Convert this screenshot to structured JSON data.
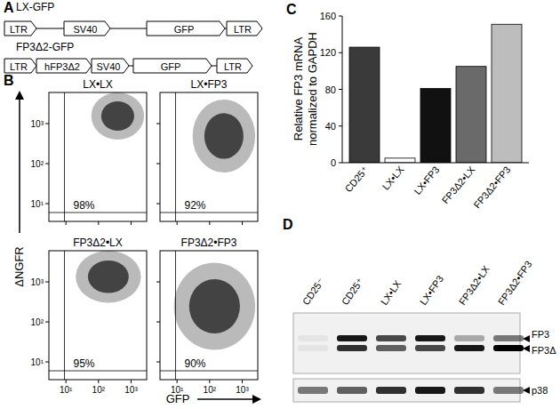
{
  "panel_labels": [
    "A",
    "B",
    "C",
    "D"
  ],
  "diagram": {
    "constructs": [
      {
        "name": "LX-GFP",
        "elements": [
          "LTR",
          "SV40",
          "GFP",
          "LTR"
        ]
      },
      {
        "name": "FP3Δ2-GFP",
        "elements": [
          "LTR",
          "hFP3Δ2",
          "SV40",
          "GFP",
          "LTR"
        ]
      }
    ]
  },
  "flow": {
    "x_label": "GFP",
    "y_label": "ΔNGFR",
    "log": true,
    "xlim": [
      3,
      3000
    ],
    "ylim": [
      3.6,
      6000
    ],
    "xticks": [
      {
        "value": 10,
        "label": "10¹"
      },
      {
        "value": 100,
        "label": "10²"
      },
      {
        "value": 1000,
        "label": "10³"
      }
    ],
    "yticks": [
      {
        "value": 10,
        "label": "10¹"
      },
      {
        "value": 100,
        "label": "10²"
      },
      {
        "value": 1000,
        "label": "10³"
      }
    ],
    "plots": [
      {
        "title": "LX•LX",
        "label": "98%",
        "gate": {
          "gfp": 9,
          "ngfr": 6
        },
        "gfp_range": [
          60,
          2500
        ],
        "ngfr_range": [
          400,
          6000
        ]
      },
      {
        "title": "LX•FP3",
        "label": "92%",
        "gate": {
          "gfp": 9,
          "ngfr": 6
        },
        "gfp_range": [
          30,
          2500
        ],
        "ngfr_range": [
          60,
          4000
        ]
      },
      {
        "title": "FP3Δ2•LX",
        "label": "95%",
        "gate": {
          "gfp": 9,
          "ngfr": 6
        },
        "gfp_range": [
          20,
          2000
        ],
        "ngfr_range": [
          300,
          6000
        ]
      },
      {
        "title": "FP3Δ2•FP3",
        "label": "90%",
        "gate": {
          "gfp": 9,
          "ngfr": 6
        },
        "gfp_range": [
          8,
          2500
        ],
        "ngfr_range": [
          20,
          3000
        ]
      }
    ]
  },
  "chart_data": {
    "type": "bar",
    "y_label": [
      "Relative FP3 mRNA",
      "normalized to GAPDH"
    ],
    "categories": [
      "CD25⁺",
      "LX•LX",
      "LX•FP3",
      "FP3Δ2•LX",
      "FP3Δ2•FP3"
    ],
    "values": [
      126,
      5,
      81,
      105,
      151
    ],
    "colors": [
      "#3a3a3a",
      "#ffffff",
      "#111111",
      "#6a6a6a",
      "#bdbdbd"
    ],
    "ylim": [
      0,
      160
    ],
    "yticks": [
      0,
      40,
      80,
      120,
      160
    ]
  },
  "blot": {
    "lanes": [
      "CD25⁻",
      "CD25⁺",
      "LX•LX",
      "LX•FP3",
      "FP3Δ2•LX",
      "FP3Δ2•FP3"
    ],
    "bands": [
      {
        "label": "FP3",
        "values": [
          0.05,
          0.9,
          0.7,
          0.9,
          0.3,
          0.5
        ]
      },
      {
        "label": "FP3Δ",
        "values": [
          0.05,
          0.8,
          0.6,
          0.7,
          0.9,
          1.0
        ]
      },
      {
        "label": "p38",
        "values": [
          0.5,
          0.6,
          0.8,
          0.9,
          0.8,
          0.5
        ]
      }
    ]
  }
}
